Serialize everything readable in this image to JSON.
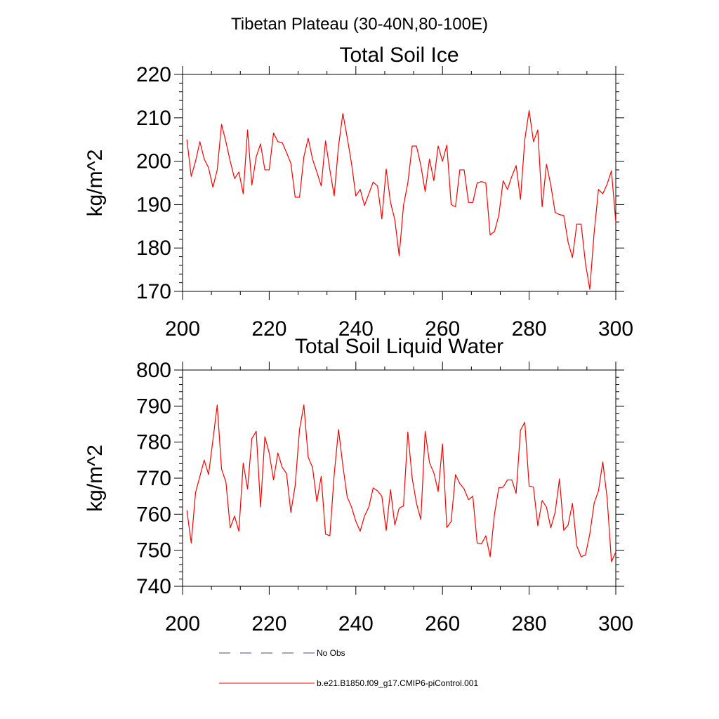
{
  "figure_title": "Tibetan Plateau (30-40N,80-100E)",
  "legend": {
    "entries": [
      {
        "label": "No Obs",
        "color": "#4a4a7a",
        "dash": "dashed"
      },
      {
        "label": "b.e21.B1850.f09_g17.CMIP6-piControl.001",
        "color": "#ff0000",
        "dash": "solid"
      }
    ]
  },
  "chart_data": [
    {
      "type": "line",
      "title": "Total Soil Ice",
      "xlabel": "",
      "ylabel": "kg/m^2",
      "xlim": [
        200,
        300
      ],
      "ylim": [
        170,
        220
      ],
      "xticks": [
        200,
        220,
        240,
        260,
        280,
        300
      ],
      "yticks": [
        170,
        180,
        190,
        200,
        210,
        220
      ],
      "grid": false,
      "series": [
        {
          "name": "b.e21.B1850.f09_g17.CMIP6-piControl.001",
          "color": "#ff0000",
          "x_start": 201,
          "x_step": 1,
          "values": [
            205.0,
            196.5,
            200.0,
            204.5,
            200.5,
            198.5,
            194.0,
            198.0,
            208.5,
            204.5,
            200.0,
            196.0,
            197.5,
            192.5,
            207.2,
            194.5,
            201.0,
            204.0,
            198.0,
            198.0,
            206.5,
            204.5,
            204.3,
            202.0,
            199.5,
            191.7,
            191.7,
            201.0,
            205.3,
            200.5,
            197.5,
            194.3,
            204.7,
            198.0,
            192.0,
            203.5,
            211.0,
            205.5,
            199.5,
            192.0,
            193.5,
            189.8,
            192.5,
            195.2,
            194.3,
            186.7,
            198.2,
            190.5,
            186.5,
            178.2,
            189.8,
            195.0,
            203.5,
            203.5,
            199.0,
            193.0,
            200.5,
            195.5,
            203.5,
            200.0,
            203.7,
            190.0,
            189.5,
            198.0,
            198.0,
            190.5,
            190.5,
            195.0,
            195.3,
            195.0,
            183.0,
            183.8,
            187.5,
            195.5,
            193.5,
            196.5,
            199.0,
            191.2,
            205.0,
            211.7,
            204.5,
            207.2,
            189.5,
            199.3,
            194.5,
            188.2,
            187.7,
            187.5,
            181.3,
            177.8,
            185.5,
            185.5,
            176.5,
            170.5,
            183.5,
            193.5,
            192.5,
            194.7,
            197.8,
            186.0
          ]
        }
      ]
    },
    {
      "type": "line",
      "title": "Total Soil Liquid Water",
      "xlabel": "",
      "ylabel": "kg/m^2",
      "xlim": [
        200,
        300
      ],
      "ylim": [
        740,
        800
      ],
      "xticks": [
        200,
        220,
        240,
        260,
        280,
        300
      ],
      "yticks": [
        740,
        750,
        760,
        770,
        780,
        790,
        800
      ],
      "grid": false,
      "series": [
        {
          "name": "b.e21.B1850.f09_g17.CMIP6-piControl.001",
          "color": "#ff0000",
          "x_start": 201,
          "x_step": 1,
          "values": [
            761.0,
            752.0,
            766.0,
            770.5,
            775.0,
            771.0,
            780.5,
            790.3,
            772.5,
            769.0,
            756.2,
            759.5,
            755.3,
            774.2,
            767.0,
            781.0,
            783.0,
            762.0,
            781.5,
            777.0,
            769.5,
            777.0,
            773.0,
            771.3,
            760.5,
            768.0,
            783.5,
            790.3,
            775.8,
            773.0,
            763.5,
            770.5,
            754.5,
            754.0,
            771.0,
            783.5,
            773.5,
            764.8,
            762.0,
            758.0,
            755.3,
            759.5,
            762.0,
            767.3,
            766.5,
            765.0,
            755.5,
            766.8,
            757.0,
            761.7,
            762.3,
            782.8,
            770.0,
            763.0,
            758.5,
            783.0,
            774.3,
            771.5,
            766.3,
            779.5,
            756.3,
            758.0,
            771.0,
            768.5,
            767.0,
            764.0,
            765.0,
            752.0,
            751.8,
            754.0,
            748.2,
            760.0,
            767.3,
            767.5,
            769.5,
            769.5,
            765.8,
            783.3,
            785.5,
            767.8,
            767.5,
            756.8,
            763.8,
            762.0,
            756.2,
            760.5,
            769.8,
            755.5,
            757.0,
            763.0,
            751.2,
            748.2,
            748.7,
            754.5,
            763.0,
            766.5,
            774.5,
            764.5,
            746.8,
            749.5
          ]
        }
      ]
    }
  ]
}
